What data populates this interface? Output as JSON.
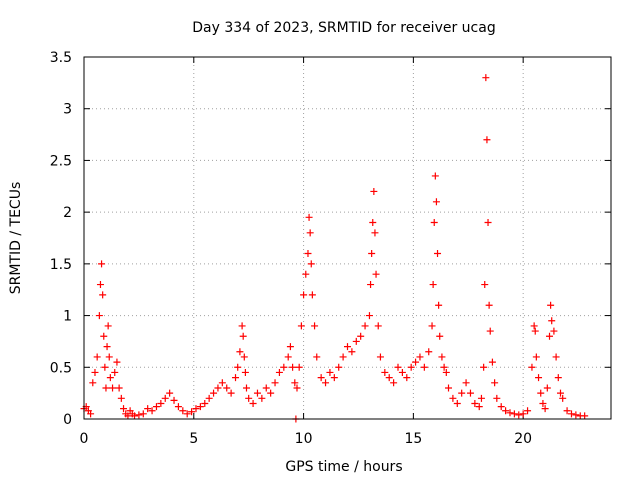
{
  "chart_data": {
    "type": "scatter",
    "title": "Day 334 of 2023, SRMTID for receiver ucag",
    "xlabel": "GPS time / hours",
    "ylabel": "SRMTID / TECUs",
    "xlim": [
      0,
      24
    ],
    "ylim": [
      0,
      3.5
    ],
    "grid": true,
    "marker": "plus",
    "color": "#ff0000",
    "x_ticks": [
      0,
      5,
      10,
      15,
      20
    ],
    "x_tick_labels": [
      "0",
      "5",
      "10",
      "15",
      "20"
    ],
    "y_ticks": [
      0,
      0.5,
      1,
      1.5,
      2,
      2.5,
      3,
      3.5
    ],
    "y_tick_labels": [
      "0",
      "0.5",
      "1",
      "1.5",
      "2",
      "2.5",
      "3",
      "3.5"
    ],
    "series": [
      {
        "name": "SRMTID",
        "x": [
          0.0,
          0.1,
          0.2,
          0.3,
          0.4,
          0.5,
          0.6,
          0.7,
          0.75,
          0.8,
          0.85,
          0.9,
          0.95,
          1.0,
          1.05,
          1.1,
          1.15,
          1.2,
          1.3,
          1.4,
          1.5,
          1.6,
          1.7,
          1.8,
          1.9,
          2.0,
          2.1,
          2.2,
          2.3,
          2.5,
          2.7,
          2.9,
          3.1,
          3.3,
          3.5,
          3.7,
          3.9,
          4.1,
          4.3,
          4.5,
          4.7,
          4.9,
          5.1,
          5.3,
          5.5,
          5.7,
          5.9,
          6.1,
          6.3,
          6.5,
          6.7,
          6.9,
          7.0,
          7.1,
          7.2,
          7.25,
          7.3,
          7.35,
          7.4,
          7.5,
          7.7,
          7.9,
          8.1,
          8.3,
          8.5,
          8.7,
          8.9,
          9.1,
          9.3,
          9.4,
          9.5,
          9.6,
          9.7,
          9.8,
          9.9,
          10.0,
          10.1,
          10.2,
          10.25,
          10.3,
          10.35,
          10.4,
          10.5,
          10.6,
          10.8,
          11.0,
          11.2,
          11.4,
          11.6,
          11.8,
          12.0,
          12.2,
          12.4,
          12.6,
          12.8,
          13.0,
          13.05,
          13.1,
          13.15,
          13.2,
          13.25,
          13.3,
          13.4,
          13.5,
          13.7,
          13.9,
          14.1,
          14.3,
          14.5,
          14.7,
          14.9,
          15.1,
          15.3,
          15.5,
          15.7,
          15.85,
          15.9,
          15.95,
          16.0,
          16.05,
          16.1,
          16.15,
          16.2,
          16.3,
          16.4,
          16.5,
          16.6,
          16.8,
          17.0,
          17.2,
          17.4,
          17.6,
          17.8,
          18.0,
          18.1,
          18.2,
          18.25,
          18.3,
          18.35,
          18.4,
          18.45,
          18.5,
          18.6,
          18.7,
          18.8,
          19.0,
          19.2,
          19.4,
          19.6,
          19.8,
          20.0,
          20.2,
          20.4,
          20.5,
          20.55,
          20.6,
          20.7,
          20.8,
          20.9,
          21.0,
          21.1,
          21.2,
          21.25,
          21.3,
          21.4,
          21.5,
          21.6,
          21.7,
          21.8,
          22.0,
          22.2,
          22.4,
          22.6,
          22.8,
          9.65
        ],
        "y": [
          0.1,
          0.12,
          0.08,
          0.05,
          0.35,
          0.45,
          0.6,
          1.0,
          1.3,
          1.5,
          1.2,
          0.8,
          0.5,
          0.3,
          0.7,
          0.9,
          0.6,
          0.4,
          0.3,
          0.45,
          0.55,
          0.3,
          0.2,
          0.1,
          0.05,
          0.03,
          0.08,
          0.05,
          0.03,
          0.04,
          0.05,
          0.1,
          0.08,
          0.12,
          0.15,
          0.2,
          0.25,
          0.18,
          0.12,
          0.08,
          0.05,
          0.07,
          0.1,
          0.12,
          0.15,
          0.2,
          0.25,
          0.3,
          0.35,
          0.3,
          0.25,
          0.4,
          0.5,
          0.65,
          0.9,
          0.8,
          0.6,
          0.45,
          0.3,
          0.2,
          0.15,
          0.25,
          0.2,
          0.3,
          0.25,
          0.35,
          0.45,
          0.5,
          0.6,
          0.7,
          0.5,
          0.35,
          0.3,
          0.5,
          0.9,
          1.2,
          1.4,
          1.6,
          1.95,
          1.8,
          1.5,
          1.2,
          0.9,
          0.6,
          0.4,
          0.35,
          0.45,
          0.4,
          0.5,
          0.6,
          0.7,
          0.65,
          0.75,
          0.8,
          0.9,
          1.0,
          1.3,
          1.6,
          1.9,
          2.2,
          1.8,
          1.4,
          0.9,
          0.6,
          0.45,
          0.4,
          0.35,
          0.5,
          0.45,
          0.4,
          0.5,
          0.55,
          0.6,
          0.5,
          0.65,
          0.9,
          1.3,
          1.9,
          2.35,
          2.1,
          1.6,
          1.1,
          0.8,
          0.6,
          0.5,
          0.45,
          0.3,
          0.2,
          0.15,
          0.25,
          0.35,
          0.25,
          0.15,
          0.12,
          0.2,
          0.5,
          1.3,
          3.3,
          2.7,
          1.9,
          1.1,
          0.85,
          0.55,
          0.35,
          0.2,
          0.12,
          0.08,
          0.06,
          0.05,
          0.04,
          0.05,
          0.08,
          0.5,
          0.9,
          0.85,
          0.6,
          0.4,
          0.25,
          0.15,
          0.1,
          0.3,
          0.8,
          1.1,
          0.95,
          0.85,
          0.6,
          0.4,
          0.25,
          0.2,
          0.08,
          0.05,
          0.04,
          0.03,
          0.03,
          0.0
        ]
      }
    ]
  }
}
